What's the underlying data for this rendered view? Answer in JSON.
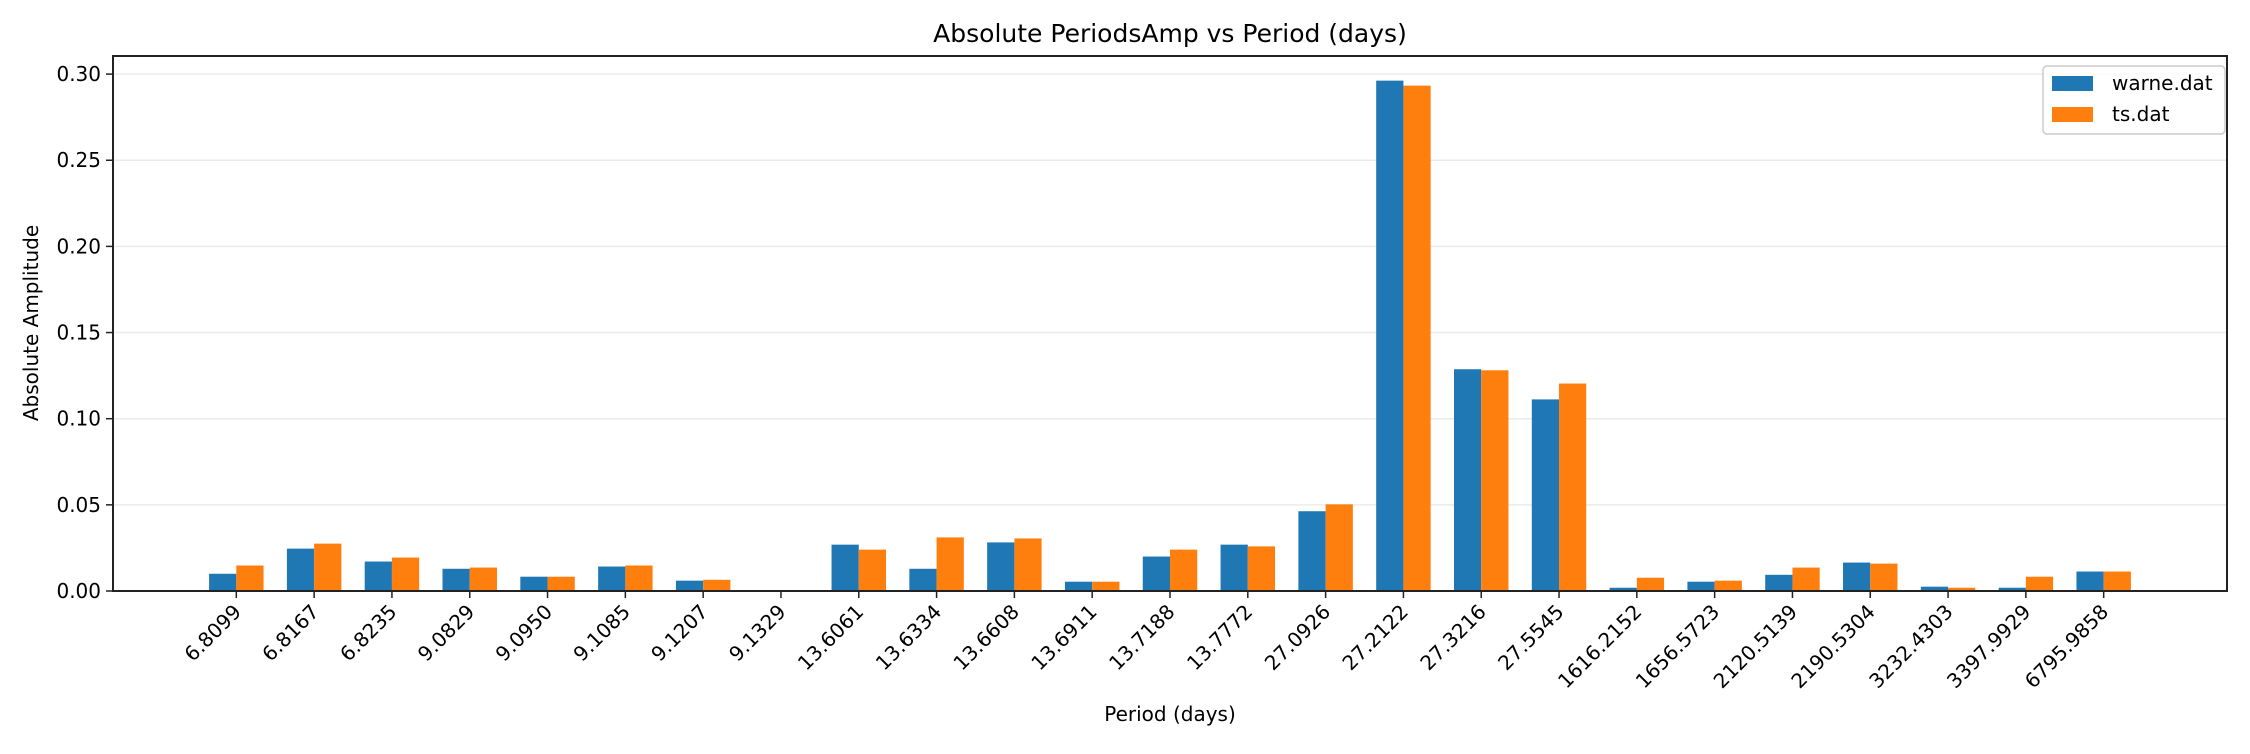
{
  "chart_data": {
    "type": "bar",
    "title": "Absolute PeriodsAmp vs Period (days)",
    "xlabel": "Period (days)",
    "ylabel": "Absolute Amplitude",
    "ylim": [
      0,
      0.3105
    ],
    "yticks": [
      "0.00",
      "0.05",
      "0.10",
      "0.15",
      "0.20",
      "0.25",
      "0.30"
    ],
    "grid": "horizontal",
    "legend_position": "top-right",
    "categories": [
      "6.8099",
      "6.8167",
      "6.8235",
      "9.0829",
      "9.0950",
      "9.1085",
      "9.1207",
      "9.1329",
      "13.6061",
      "13.6334",
      "13.6608",
      "13.6911",
      "13.7188",
      "13.7772",
      "27.0926",
      "27.2122",
      "27.3216",
      "27.5545",
      "1616.2152",
      "1656.5723",
      "2120.5139",
      "2190.5304",
      "3232.4303",
      "3397.9929",
      "6795.9858"
    ],
    "series": [
      {
        "name": "warne.dat",
        "color": "#1f77b4",
        "values": [
          0.01,
          0.0246,
          0.0171,
          0.0129,
          0.0083,
          0.0142,
          0.006,
          0.0,
          0.0269,
          0.0129,
          0.0282,
          0.0054,
          0.02,
          0.0269,
          0.0463,
          0.2962,
          0.1287,
          0.1112,
          0.0019,
          0.0054,
          0.0094,
          0.0165,
          0.0025,
          0.0019,
          0.0113
        ]
      },
      {
        "name": "ts.dat",
        "color": "#ff7f0e",
        "values": [
          0.0148,
          0.0275,
          0.0194,
          0.0136,
          0.0083,
          0.0148,
          0.0065,
          0.0,
          0.024,
          0.0311,
          0.0305,
          0.0054,
          0.024,
          0.0259,
          0.0503,
          0.2933,
          0.1281,
          0.1204,
          0.0077,
          0.006,
          0.0136,
          0.0159,
          0.0019,
          0.0083,
          0.0113
        ]
      }
    ]
  }
}
